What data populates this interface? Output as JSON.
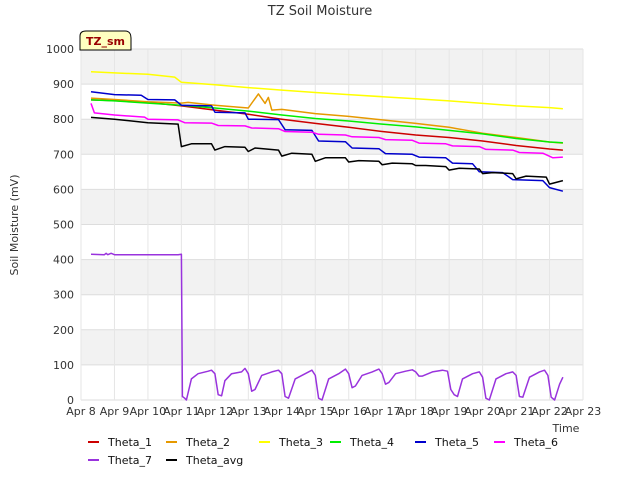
{
  "chart_data": {
    "type": "line",
    "title": "TZ Soil Moisture",
    "badge": "TZ_sm",
    "xlabel": "Time",
    "ylabel": "Soil Moisture (mV)",
    "ylim": [
      0,
      1000
    ],
    "yticks": [
      0,
      100,
      200,
      300,
      400,
      500,
      600,
      700,
      800,
      900,
      1000
    ],
    "xlim": [
      8,
      23
    ],
    "xtick_values": [
      8,
      9,
      10,
      11,
      12,
      13,
      14,
      15,
      16,
      17,
      18,
      19,
      20,
      21,
      22,
      23
    ],
    "xtick_labels": [
      "Apr 8",
      "Apr 9",
      "Apr 10",
      "Apr 11",
      "Apr 12",
      "Apr 13",
      "Apr 14",
      "Apr 15",
      "Apr 16",
      "Apr 17",
      "Apr 18",
      "Apr 19",
      "Apr 20",
      "Apr 21",
      "Apr 22",
      "Apr 23"
    ],
    "grid": true,
    "legend_position": "bottom",
    "series": [
      {
        "name": "Theta_1",
        "color": "#cc0000",
        "points": [
          [
            8.3,
            855
          ],
          [
            9,
            853
          ],
          [
            10,
            848
          ],
          [
            11,
            838
          ],
          [
            12,
            826
          ],
          [
            13,
            814
          ],
          [
            14,
            800
          ],
          [
            15,
            788
          ],
          [
            16,
            777
          ],
          [
            17,
            765
          ],
          [
            18,
            755
          ],
          [
            19,
            748
          ],
          [
            20,
            738
          ],
          [
            21,
            725
          ],
          [
            22,
            715
          ],
          [
            22.4,
            712
          ]
        ]
      },
      {
        "name": "Theta_2",
        "color": "#e69900",
        "points": [
          [
            8.3,
            860
          ],
          [
            9,
            856
          ],
          [
            10,
            850
          ],
          [
            11,
            846
          ],
          [
            11.2,
            848
          ],
          [
            12,
            840
          ],
          [
            13,
            832
          ],
          [
            13.3,
            872
          ],
          [
            13.5,
            845
          ],
          [
            13.6,
            862
          ],
          [
            13.7,
            826
          ],
          [
            14,
            828
          ],
          [
            14.5,
            822
          ],
          [
            15,
            816
          ],
          [
            16,
            808
          ],
          [
            17,
            798
          ],
          [
            18,
            788
          ],
          [
            19,
            777
          ],
          [
            20,
            760
          ],
          [
            21,
            748
          ],
          [
            22,
            735
          ],
          [
            22.4,
            732
          ]
        ]
      },
      {
        "name": "Theta_3",
        "color": "#ffff00",
        "points": [
          [
            8.3,
            935
          ],
          [
            9,
            932
          ],
          [
            10,
            928
          ],
          [
            10.8,
            920
          ],
          [
            11,
            905
          ],
          [
            12,
            898
          ],
          [
            13,
            890
          ],
          [
            14,
            883
          ],
          [
            15,
            876
          ],
          [
            16,
            870
          ],
          [
            17,
            864
          ],
          [
            18,
            858
          ],
          [
            19,
            852
          ],
          [
            20,
            845
          ],
          [
            21,
            838
          ],
          [
            22,
            833
          ],
          [
            22.4,
            830
          ]
        ]
      },
      {
        "name": "Theta_4",
        "color": "#00ee00",
        "points": [
          [
            8.3,
            855
          ],
          [
            9,
            852
          ],
          [
            10,
            846
          ],
          [
            11,
            840
          ],
          [
            12,
            832
          ],
          [
            13,
            823
          ],
          [
            14,
            812
          ],
          [
            15,
            802
          ],
          [
            16,
            795
          ],
          [
            17,
            786
          ],
          [
            18,
            778
          ],
          [
            19,
            768
          ],
          [
            20,
            758
          ],
          [
            21,
            745
          ],
          [
            22,
            735
          ],
          [
            22.4,
            733
          ]
        ]
      },
      {
        "name": "Theta_5",
        "color": "#0000cc",
        "points": [
          [
            8.3,
            878
          ],
          [
            9,
            870
          ],
          [
            9.8,
            868
          ],
          [
            10,
            856
          ],
          [
            10.8,
            855
          ],
          [
            11,
            840
          ],
          [
            11.9,
            838
          ],
          [
            12,
            820
          ],
          [
            12.9,
            818
          ],
          [
            13,
            800
          ],
          [
            13.9,
            799
          ],
          [
            14.1,
            770
          ],
          [
            14.9,
            768
          ],
          [
            15.1,
            738
          ],
          [
            15.9,
            736
          ],
          [
            16.1,
            718
          ],
          [
            16.9,
            716
          ],
          [
            17.1,
            702
          ],
          [
            17.9,
            700
          ],
          [
            18.1,
            692
          ],
          [
            18.9,
            690
          ],
          [
            19.1,
            675
          ],
          [
            19.7,
            673
          ],
          [
            19.9,
            650
          ],
          [
            20.6,
            648
          ],
          [
            20.9,
            628
          ],
          [
            21.8,
            625
          ],
          [
            22,
            605
          ],
          [
            22.4,
            595
          ]
        ]
      },
      {
        "name": "Theta_6",
        "color": "#ff00ff",
        "points": [
          [
            8.3,
            845
          ],
          [
            8.4,
            818
          ],
          [
            9,
            812
          ],
          [
            9.9,
            806
          ],
          [
            10,
            800
          ],
          [
            10.9,
            798
          ],
          [
            11.1,
            790
          ],
          [
            11.9,
            789
          ],
          [
            12.1,
            782
          ],
          [
            12.9,
            781
          ],
          [
            13.1,
            775
          ],
          [
            13.9,
            773
          ],
          [
            14.1,
            765
          ],
          [
            14.9,
            763
          ],
          [
            15.1,
            757
          ],
          [
            15.9,
            755
          ],
          [
            16.1,
            750
          ],
          [
            16.9,
            748
          ],
          [
            17.1,
            742
          ],
          [
            17.9,
            740
          ],
          [
            18.1,
            732
          ],
          [
            18.9,
            730
          ],
          [
            19.1,
            724
          ],
          [
            19.9,
            722
          ],
          [
            20.1,
            714
          ],
          [
            20.9,
            712
          ],
          [
            21.1,
            705
          ],
          [
            21.8,
            703
          ],
          [
            22.1,
            690
          ],
          [
            22.4,
            692
          ]
        ]
      },
      {
        "name": "Theta_7",
        "color": "#9933dd",
        "points": [
          [
            8.3,
            415
          ],
          [
            8.7,
            414
          ],
          [
            8.75,
            418
          ],
          [
            8.8,
            414
          ],
          [
            8.9,
            418
          ],
          [
            9,
            414
          ],
          [
            10,
            414
          ],
          [
            10.9,
            414
          ],
          [
            11,
            415
          ],
          [
            11.03,
            10
          ],
          [
            11.1,
            5
          ],
          [
            11.15,
            0
          ],
          [
            11.3,
            60
          ],
          [
            11.5,
            75
          ],
          [
            11.8,
            82
          ],
          [
            11.9,
            85
          ],
          [
            12.0,
            75
          ],
          [
            12.1,
            15
          ],
          [
            12.2,
            12
          ],
          [
            12.3,
            55
          ],
          [
            12.5,
            75
          ],
          [
            12.8,
            80
          ],
          [
            12.9,
            90
          ],
          [
            13.0,
            75
          ],
          [
            13.1,
            25
          ],
          [
            13.2,
            30
          ],
          [
            13.4,
            70
          ],
          [
            13.7,
            80
          ],
          [
            13.9,
            85
          ],
          [
            14.0,
            75
          ],
          [
            14.1,
            10
          ],
          [
            14.2,
            5
          ],
          [
            14.4,
            60
          ],
          [
            14.7,
            75
          ],
          [
            14.9,
            85
          ],
          [
            15.0,
            70
          ],
          [
            15.1,
            5
          ],
          [
            15.2,
            0
          ],
          [
            15.4,
            60
          ],
          [
            15.7,
            75
          ],
          [
            15.9,
            88
          ],
          [
            16.0,
            75
          ],
          [
            16.1,
            35
          ],
          [
            16.2,
            40
          ],
          [
            16.4,
            70
          ],
          [
            16.7,
            80
          ],
          [
            16.9,
            88
          ],
          [
            17.0,
            75
          ],
          [
            17.1,
            45
          ],
          [
            17.2,
            50
          ],
          [
            17.4,
            75
          ],
          [
            17.7,
            82
          ],
          [
            17.9,
            86
          ],
          [
            18.0,
            80
          ],
          [
            18.1,
            68
          ],
          [
            18.2,
            68
          ],
          [
            18.5,
            80
          ],
          [
            18.8,
            85
          ],
          [
            18.95,
            82
          ],
          [
            19.05,
            30
          ],
          [
            19.15,
            15
          ],
          [
            19.25,
            10
          ],
          [
            19.4,
            60
          ],
          [
            19.7,
            75
          ],
          [
            19.9,
            80
          ],
          [
            20.0,
            65
          ],
          [
            20.1,
            5
          ],
          [
            20.2,
            0
          ],
          [
            20.4,
            60
          ],
          [
            20.7,
            75
          ],
          [
            20.9,
            80
          ],
          [
            21.0,
            70
          ],
          [
            21.1,
            10
          ],
          [
            21.2,
            8
          ],
          [
            21.4,
            65
          ],
          [
            21.7,
            80
          ],
          [
            21.85,
            85
          ],
          [
            21.95,
            70
          ],
          [
            22.05,
            8
          ],
          [
            22.15,
            0
          ],
          [
            22.3,
            45
          ],
          [
            22.4,
            65
          ]
        ]
      },
      {
        "name": "Theta_avg",
        "color": "#000000",
        "points": [
          [
            8.3,
            805
          ],
          [
            9,
            800
          ],
          [
            10,
            790
          ],
          [
            10.9,
            786
          ],
          [
            11,
            722
          ],
          [
            11.3,
            730
          ],
          [
            11.9,
            730
          ],
          [
            12.0,
            712
          ],
          [
            12.3,
            722
          ],
          [
            12.9,
            720
          ],
          [
            13.0,
            708
          ],
          [
            13.2,
            718
          ],
          [
            13.9,
            712
          ],
          [
            14.0,
            695
          ],
          [
            14.3,
            703
          ],
          [
            14.9,
            700
          ],
          [
            15.0,
            680
          ],
          [
            15.3,
            690
          ],
          [
            15.9,
            690
          ],
          [
            16.0,
            678
          ],
          [
            16.3,
            682
          ],
          [
            16.9,
            680
          ],
          [
            17.0,
            670
          ],
          [
            17.3,
            675
          ],
          [
            17.9,
            673
          ],
          [
            18.0,
            668
          ],
          [
            18.3,
            668
          ],
          [
            18.9,
            665
          ],
          [
            19.0,
            655
          ],
          [
            19.3,
            660
          ],
          [
            19.9,
            658
          ],
          [
            20.0,
            645
          ],
          [
            20.3,
            648
          ],
          [
            20.9,
            645
          ],
          [
            21.0,
            630
          ],
          [
            21.3,
            638
          ],
          [
            21.9,
            635
          ],
          [
            22.0,
            615
          ],
          [
            22.4,
            625
          ]
        ]
      }
    ]
  }
}
